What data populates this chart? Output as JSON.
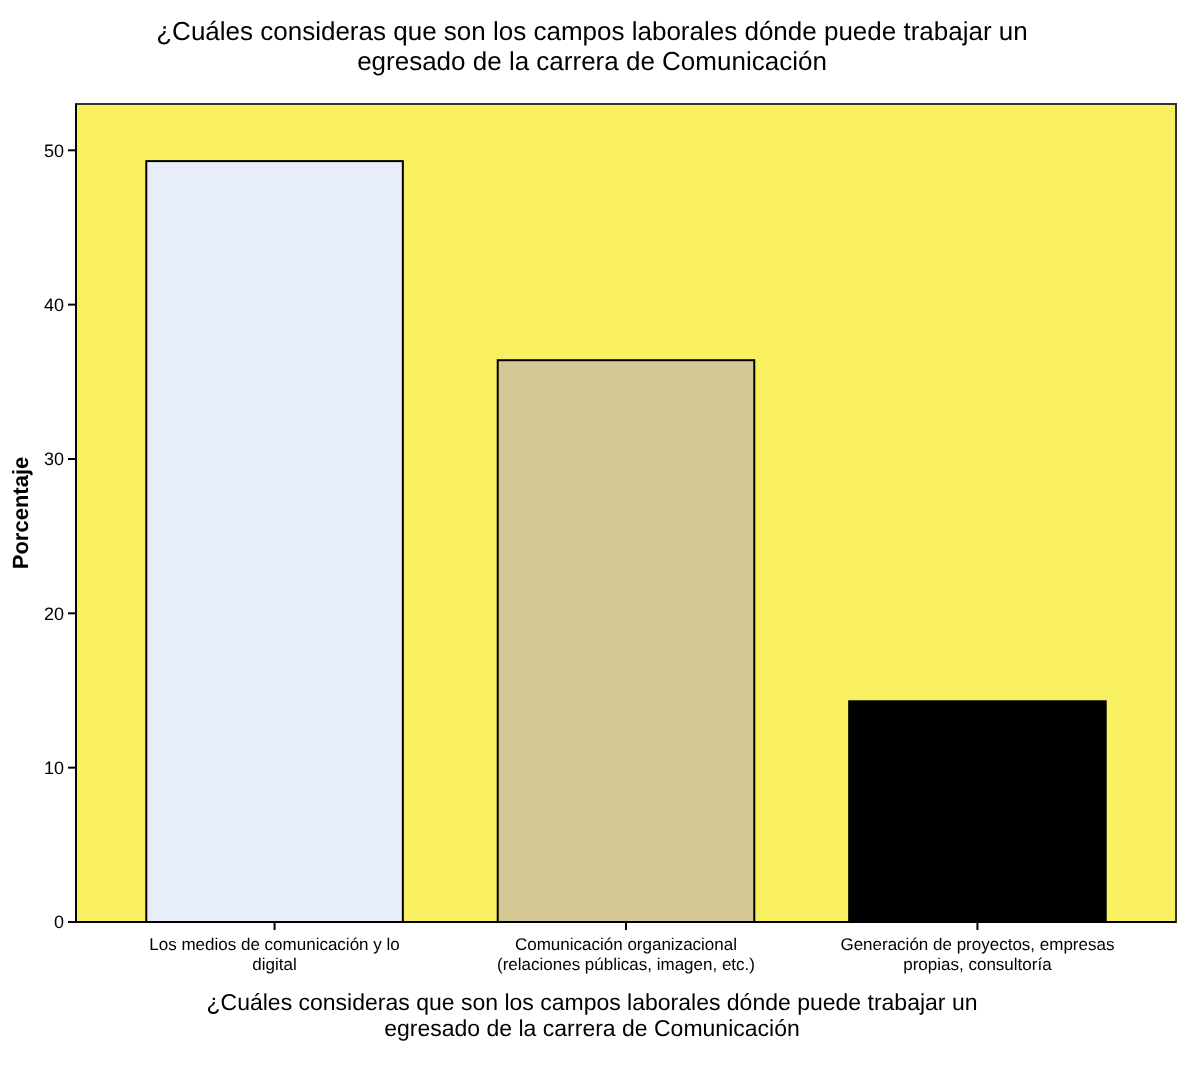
{
  "chart_data": {
    "type": "bar",
    "title": "¿Cuáles consideras que son los campos laborales dónde puede trabajar un egresado de la carrera de Comunicación",
    "xlabel": "¿Cuáles consideras que son los campos laborales dónde puede trabajar un egresado de la carrera de Comunicación",
    "ylabel": "Porcentaje",
    "categories": [
      "Los medios de comunicación y lo digital",
      "Comunicación organizacional (relaciones públicas, imagen, etc.)",
      "Generación de proyectos, empresas propias, consultoría"
    ],
    "values": [
      49.3,
      36.4,
      14.3
    ],
    "colors": [
      "#e8eef8",
      "#d4c995",
      "#000000"
    ],
    "ylim": [
      0,
      53
    ],
    "yticks": [
      0,
      10,
      20,
      30,
      40,
      50
    ],
    "grid": false
  }
}
